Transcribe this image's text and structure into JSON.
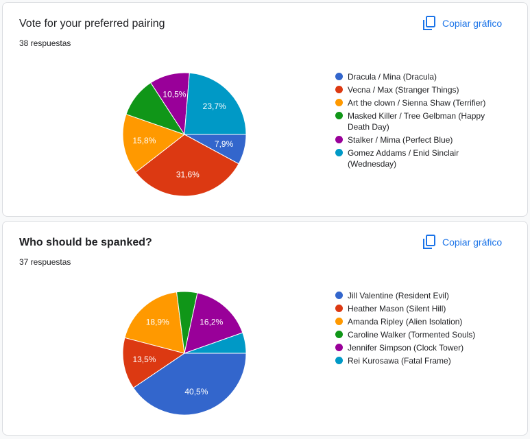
{
  "chart_data": [
    {
      "type": "pie",
      "title": "Vote for your preferred pairing",
      "subtitle": "38 respuestas",
      "copy_label": "Copiar gráfico",
      "categories": [
        "Dracula / Mina (Dracula)",
        "Vecna / Max (Stranger Things)",
        "Art the clown / Sienna Shaw (Terrifier)",
        "Masked Killer / Tree Gelbman (Happy Death Day)",
        "Stalker / Mima (Perfect Blue)",
        "Gomez Addams / Enid Sinclair (Wednesday)"
      ],
      "values": [
        7.9,
        31.6,
        15.8,
        10.5,
        10.5,
        23.7
      ],
      "value_labels": [
        "7,9%",
        "31,6%",
        "15,8%",
        null,
        "10,5%",
        "23,7%"
      ],
      "colors": [
        "#3366cc",
        "#dc3912",
        "#ff9900",
        "#109618",
        "#990099",
        "#0099c6"
      ]
    },
    {
      "type": "pie",
      "title": "Who should be spanked?",
      "subtitle": "37 respuestas",
      "copy_label": "Copiar gráfico",
      "categories": [
        "Jill Valentine (Resident Evil)",
        "Heather Mason (Silent Hill)",
        "Amanda Ripley (Alien Isolation)",
        "Caroline Walker (Tormented Souls)",
        "Jennifer Simpson (Clock Tower)",
        "Rei Kurosawa (Fatal Frame)"
      ],
      "values": [
        40.5,
        13.5,
        18.9,
        5.4,
        16.2,
        5.4
      ],
      "value_labels": [
        "40,5%",
        "13,5%",
        "18,9%",
        null,
        "16,2%",
        null
      ],
      "colors": [
        "#3366cc",
        "#dc3912",
        "#ff9900",
        "#109618",
        "#990099",
        "#0099c6"
      ]
    }
  ]
}
